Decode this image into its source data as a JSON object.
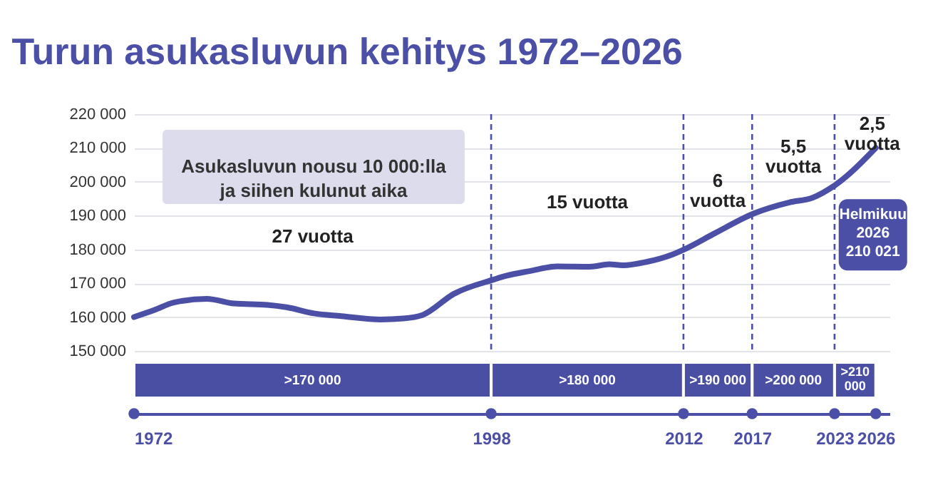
{
  "chart_data": {
    "type": "line",
    "title": "Turun asukasluvun kehitys 1972–2026",
    "series": [
      {
        "color": "#4b4fa6",
        "x": [
          1972,
          1973.5,
          1974.9,
          1977.3,
          1979.3,
          1981.7,
          1983.1,
          1985.1,
          1987.1,
          1989.9,
          1991.6,
          1993,
          1995.3,
          1998.2,
          1999.1,
          2000.8,
          2002.8,
          2005.2,
          2006.6,
          2007.6,
          2009.3,
          2011,
          2012.2,
          2014.2,
          2017.1,
          2019.7,
          2021.4,
          2023,
          2026
        ],
        "values": [
          160000,
          162100,
          164300,
          165400,
          164000,
          163600,
          162900,
          161100,
          160300,
          159300,
          159600,
          160600,
          166900,
          171100,
          172200,
          173600,
          175000,
          174900,
          175600,
          175300,
          176300,
          178200,
          180300,
          184600,
          190600,
          193900,
          195300,
          198900,
          210021
        ]
      }
    ],
    "xlim": [
      1972,
      2027
    ],
    "xticks": [
      1972,
      1998,
      2012,
      2017,
      2023,
      2026
    ],
    "ylim": [
      150000,
      220000
    ],
    "yticks": [
      {
        "value": 150000,
        "label": "150 000"
      },
      {
        "value": 160000,
        "label": "160 000"
      },
      {
        "value": 170000,
        "label": "170 000"
      },
      {
        "value": 180000,
        "label": "180 000"
      },
      {
        "value": 190000,
        "label": "190 000"
      },
      {
        "value": 200000,
        "label": "200 000"
      },
      {
        "value": 210000,
        "label": "210 000"
      },
      {
        "value": 220000,
        "label": "220 000"
      }
    ],
    "grid": "y",
    "line_style": "solid",
    "ref_lines": [
      {
        "axis": "x",
        "value": 1998,
        "color": "#4b4fa6",
        "line_style": "dashed"
      },
      {
        "axis": "x",
        "value": 2012,
        "color": "#4b4fa6",
        "line_style": "dashed"
      },
      {
        "axis": "x",
        "value": 2017,
        "color": "#4b4fa6",
        "line_style": "dashed"
      },
      {
        "axis": "x",
        "value": 2023,
        "color": "#4b4fa6",
        "line_style": "dashed"
      }
    ],
    "annotations": [
      "Asukasluvun nousu 10 000:lla\nja siihen kulunut aika",
      "27 vuotta",
      "15 vuotta",
      "6\nvuotta",
      "5,5\nvuotta",
      "2,5\nvuotta",
      ">170 000",
      ">180 000",
      ">190 000",
      ">200 000",
      ">210 000",
      "Helmikuu\n2026\n210 021"
    ]
  }
}
